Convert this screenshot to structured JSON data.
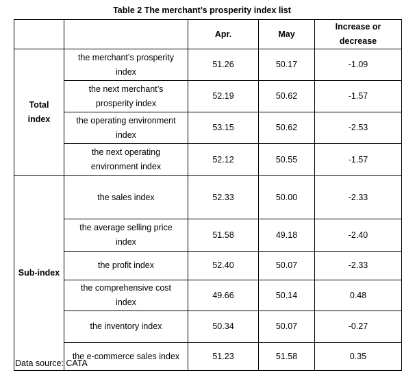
{
  "caption": "Table 2 The merchant’s prosperity index list",
  "headers": {
    "group": "",
    "name": "",
    "apr": "Apr.",
    "may": "May",
    "change": "Increase or decrease"
  },
  "groups": {
    "total": {
      "label_line1": "Total",
      "label_line2": "index"
    },
    "sub": {
      "label": "Sub-index"
    }
  },
  "total_rows": [
    {
      "name_line1": "the merchant’s prosperity",
      "name_line2": "index",
      "apr": "51.26",
      "may": "50.17",
      "change": "-1.09"
    },
    {
      "name_line1": "the next merchant’s",
      "name_line2": "prosperity index",
      "apr": "52.19",
      "may": "50.62",
      "change": "-1.57"
    },
    {
      "name_line1": "the operating environment",
      "name_line2": "index",
      "apr": "53.15",
      "may": "50.62",
      "change": "-2.53"
    },
    {
      "name_line1": "the next operating",
      "name_line2": "environment index",
      "apr": "52.12",
      "may": "50.55",
      "change": "-1.57"
    }
  ],
  "sub_rows": [
    {
      "name_line1": "the sales index",
      "name_line2": "",
      "apr": "52.33",
      "may": "50.00",
      "change": "-2.33"
    },
    {
      "name_line1": "the average selling price",
      "name_line2": "index",
      "apr": "51.58",
      "may": "49.18",
      "change": "-2.40"
    },
    {
      "name_line1": "the profit index",
      "name_line2": "",
      "apr": "52.40",
      "may": "50.07",
      "change": "-2.33"
    },
    {
      "name_line1": "the comprehensive cost",
      "name_line2": "index",
      "apr": "49.66",
      "may": "50.14",
      "change": "0.48"
    },
    {
      "name_line1": "the inventory index",
      "name_line2": "",
      "apr": "50.34",
      "may": "50.07",
      "change": "-0.27"
    },
    {
      "name_line1": "the e-commerce sales index",
      "name_line2": "",
      "apr": "51.23",
      "may": "51.58",
      "change": "0.35"
    }
  ],
  "footnote": "Data source: CATA"
}
